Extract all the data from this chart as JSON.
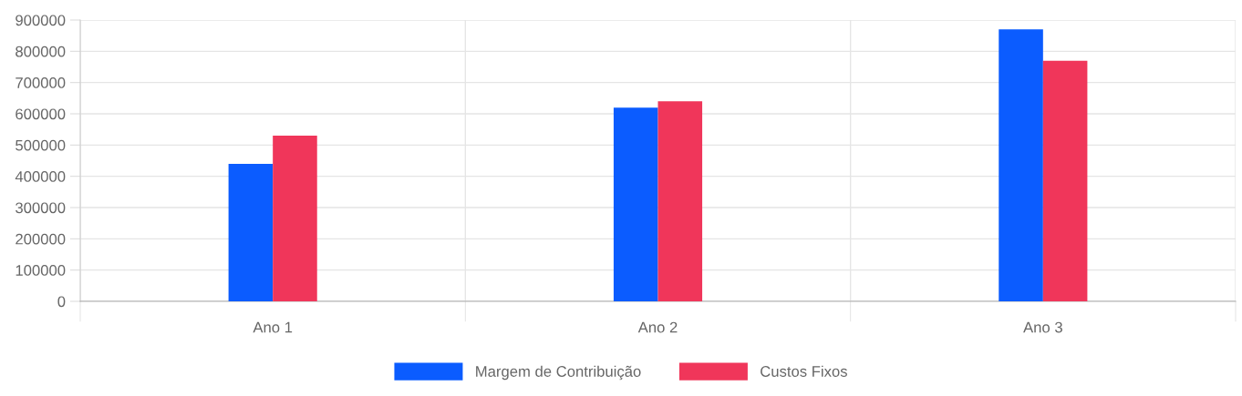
{
  "chart_data": {
    "type": "bar",
    "categories": [
      "Ano 1",
      "Ano 2",
      "Ano 3"
    ],
    "series": [
      {
        "name": "Margem de Contribuição",
        "color": "#0b5cff",
        "values": [
          440000,
          620000,
          870000
        ]
      },
      {
        "name": "Custos Fixos",
        "color": "#f0365a",
        "values": [
          530000,
          640000,
          770000
        ]
      }
    ],
    "ylim": [
      0,
      900000
    ],
    "yticks": [
      0,
      100000,
      200000,
      300000,
      400000,
      500000,
      600000,
      700000,
      800000,
      900000
    ],
    "grid": true,
    "legend": "bottom"
  }
}
